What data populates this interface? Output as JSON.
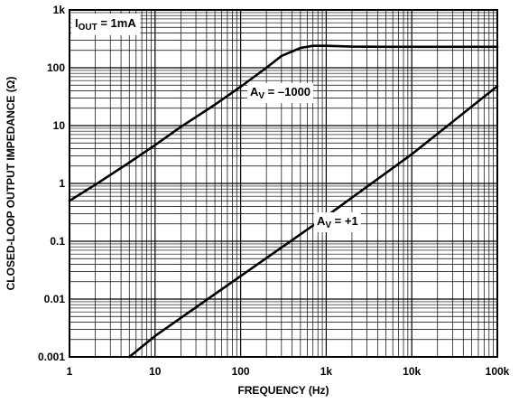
{
  "chart_data": {
    "type": "line",
    "title": "",
    "xlabel": "FREQUENCY (Hz)",
    "ylabel": "CLOSED-LOOP OUTPUT IMPEDANCE (Ω)",
    "xscale": "log",
    "yscale": "log",
    "xlim": [
      1,
      100000
    ],
    "ylim": [
      0.001,
      1000
    ],
    "grid": true,
    "x_tick_labels": [
      "1",
      "10",
      "100",
      "1k",
      "10k",
      "100k"
    ],
    "y_tick_labels": [
      "0.001",
      "0.01",
      "0.1",
      "1",
      "10",
      "100",
      "1k"
    ],
    "condition": {
      "main": "I",
      "sub": "OUT",
      "rest": " = 1mA"
    },
    "series": [
      {
        "label_main": "A",
        "label_sub": "V",
        "label_rest": " = –1000",
        "x": [
          1,
          2,
          5,
          10,
          20,
          50,
          100,
          200,
          300,
          500,
          700,
          1000,
          2000,
          5000,
          10000,
          20000,
          50000,
          100000
        ],
        "y": [
          0.5,
          0.95,
          2.3,
          4.6,
          9.5,
          23,
          47,
          100,
          160,
          220,
          240,
          240,
          232,
          230,
          230,
          230,
          230,
          230
        ]
      },
      {
        "label_main": "A",
        "label_sub": "V",
        "label_rest": " = +1",
        "x": [
          5,
          10,
          100,
          1000,
          10000,
          100000
        ],
        "y": [
          0.001,
          0.0023,
          0.025,
          0.27,
          3.2,
          48
        ]
      }
    ]
  }
}
